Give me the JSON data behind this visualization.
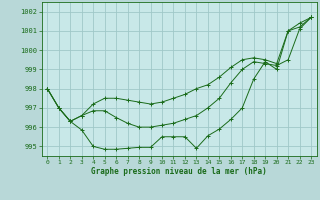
{
  "background_color": "#b8d8d8",
  "plot_bg_color": "#c8e8e8",
  "grid_color": "#a0c8c8",
  "line_color": "#1a6b1a",
  "xlabel": "Graphe pression niveau de la mer (hPa)",
  "ylim": [
    994.5,
    1002.5
  ],
  "xlim": [
    -0.5,
    23.5
  ],
  "yticks": [
    995,
    996,
    997,
    998,
    999,
    1000,
    1001,
    1002
  ],
  "xticks": [
    0,
    1,
    2,
    3,
    4,
    5,
    6,
    7,
    8,
    9,
    10,
    11,
    12,
    13,
    14,
    15,
    16,
    17,
    18,
    19,
    20,
    21,
    22,
    23
  ],
  "series": [
    [
      998.0,
      997.0,
      996.3,
      995.85,
      995.0,
      994.85,
      994.85,
      994.9,
      994.95,
      994.95,
      995.5,
      995.5,
      995.5,
      994.9,
      995.55,
      995.9,
      996.4,
      997.0,
      998.5,
      999.4,
      999.0,
      1001.0,
      1001.4,
      1001.7
    ],
    [
      998.0,
      997.0,
      996.3,
      996.6,
      996.85,
      996.85,
      996.5,
      996.2,
      996.0,
      996.0,
      996.1,
      996.2,
      996.4,
      996.6,
      997.0,
      997.5,
      998.3,
      999.0,
      999.4,
      999.3,
      999.2,
      999.5,
      1001.1,
      1001.7
    ],
    [
      998.0,
      997.0,
      996.3,
      996.6,
      997.2,
      997.5,
      997.5,
      997.4,
      997.3,
      997.2,
      997.3,
      997.5,
      997.7,
      998.0,
      998.2,
      998.6,
      999.1,
      999.5,
      999.6,
      999.5,
      999.3,
      1001.0,
      1001.2,
      1001.7
    ]
  ]
}
